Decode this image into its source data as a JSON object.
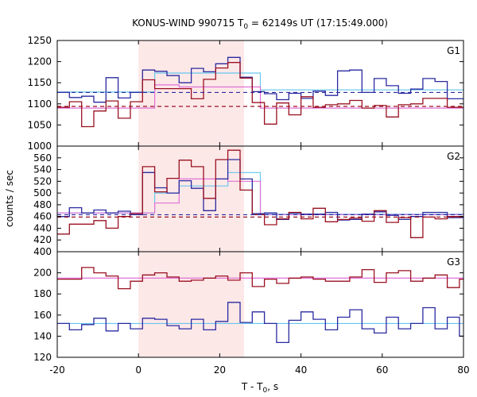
{
  "chart_data": {
    "type": "line",
    "title": "KONUS-WIND 990715 T0 = 62149s UT (17:15:49.000)",
    "title_parts": {
      "main": "KONUS-WIND 990715 T",
      "sub": "0",
      "rest": " = 62149s UT (17:15:49.000)"
    },
    "xlabel_parts": {
      "main": "T - T",
      "sub": "0",
      "rest": ", s"
    },
    "ylabel": "counts / sec",
    "xlim": [
      -20,
      80
    ],
    "x_ticks": [
      -20,
      0,
      20,
      40,
      60,
      80
    ],
    "highlight": {
      "x_start": 0,
      "x_end": 26,
      "color": "#fde8e8"
    },
    "colors": {
      "blue": "#2a2aa0",
      "red": "#9a1020",
      "cyan": "#66c6ee",
      "pink": "#e070d6",
      "shade": "#fde8e8"
    },
    "bin_edges": [
      -20,
      -17,
      -14,
      -11,
      -8,
      -5,
      -2,
      1,
      4,
      7,
      10,
      13,
      16,
      19,
      22,
      25,
      28,
      31,
      34,
      37,
      40,
      43,
      46,
      49,
      52,
      55,
      58,
      61,
      64,
      67,
      70,
      73,
      76,
      79,
      82
    ],
    "panels": [
      {
        "label": "G1",
        "ylim": [
          1000,
          1250
        ],
        "y_ticks": [
          1000,
          1050,
          1100,
          1150,
          1200,
          1250
        ],
        "series": [
          {
            "color": "blue",
            "values": [
              1127,
              1115,
              1118,
              1104,
              1162,
              1114,
              1127,
              1180,
              1177,
              1167,
              1150,
              1184,
              1176,
              1195,
              1210,
              1163,
              1129,
              1124,
              1110,
              1125,
              1113,
              1130,
              1120,
              1178,
              1180,
              1127,
              1160,
              1143,
              1125,
              1135,
              1160,
              1153,
              1112,
              1112
            ]
          },
          {
            "color": "red",
            "values": [
              1092,
              1105,
              1046,
              1083,
              1107,
              1066,
              1105,
              1157,
              1136,
              1136,
              1136,
              1112,
              1158,
              1185,
              1198,
              1161,
              1103,
              1052,
              1102,
              1074,
              1117,
              1092,
              1098,
              1100,
              1108,
              1090,
              1096,
              1069,
              1098,
              1100,
              1113,
              1113,
              1092,
              1092
            ]
          },
          {
            "color": "cyan",
            "step_x": [
              -20,
              4,
              10,
              30,
              82
            ],
            "step_y": [
              1128,
              1173,
              1173,
              1133,
              1131
            ]
          },
          {
            "color": "pink",
            "step_x": [
              -20,
              4,
              10,
              30,
              82
            ],
            "step_y": [
              1090,
              1145,
              1140,
              1090,
              1091
            ]
          },
          {
            "color": "blue",
            "dashed": true,
            "y": 1127
          },
          {
            "color": "red",
            "dashed": true,
            "y": 1094
          }
        ]
      },
      {
        "label": "G2",
        "ylim": [
          400,
          580
        ],
        "y_ticks": [
          400,
          420,
          440,
          460,
          480,
          500,
          520,
          540,
          560
        ],
        "series": [
          {
            "color": "blue",
            "values": [
              460,
              475,
              466,
              471,
              466,
              469,
              463,
              535,
              509,
              500,
              521,
              508,
              470,
              524,
              557,
              524,
              465,
              466,
              455,
              466,
              464,
              464,
              467,
              454,
              455,
              464,
              468,
              462,
              455,
              460,
              467,
              467,
              458,
              458
            ]
          },
          {
            "color": "red",
            "values": [
              430,
              447,
              447,
              453,
              440,
              460,
              465,
              545,
              502,
              525,
              556,
              545,
              491,
              557,
              573,
              505,
              463,
              446,
              456,
              467,
              456,
              474,
              451,
              455,
              457,
              452,
              470,
              450,
              458,
              424,
              459,
              456,
              460,
              460
            ]
          },
          {
            "color": "cyan",
            "step_x": [
              -20,
              4,
              10,
              22,
              30,
              82
            ],
            "step_y": [
              466,
              500,
              512,
              535,
              464,
              463
            ]
          },
          {
            "color": "pink",
            "step_x": [
              -20,
              4,
              10,
              22,
              30,
              82
            ],
            "step_y": [
              466,
              483,
              524,
              520,
              463,
              462
            ]
          },
          {
            "color": "blue",
            "dashed": true,
            "y": 463
          },
          {
            "color": "red",
            "dashed": true,
            "y": 459
          }
        ]
      },
      {
        "label": "G3",
        "ylim": [
          120,
          220
        ],
        "y_ticks": [
          120,
          140,
          160,
          180,
          200
        ],
        "series": [
          {
            "color": "red",
            "values": [
              194,
              194,
              205,
              200,
              197,
              185,
              192,
              198,
              200,
              196,
              192,
              193,
              195,
              197,
              193,
              200,
              187,
              194,
              190,
              195,
              196,
              194,
              192,
              192,
              196,
              203,
              191,
              200,
              202,
              192,
              195,
              198,
              186,
              194
            ]
          },
          {
            "color": "blue",
            "values": [
              152,
              146,
              151,
              157,
              145,
              152,
              147,
              157,
              156,
              150,
              147,
              156,
              146,
              154,
              172,
              153,
              163,
              152,
              134,
              155,
              163,
              156,
              146,
              158,
              165,
              147,
              143,
              158,
              147,
              152,
              167,
              147,
              158,
              140
            ]
          },
          {
            "color": "pink",
            "y": 195
          },
          {
            "color": "cyan",
            "y": 152
          }
        ]
      }
    ]
  }
}
